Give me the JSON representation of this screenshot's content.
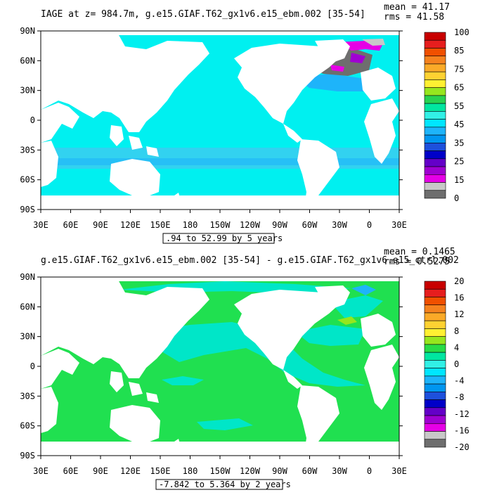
{
  "panels": [
    {
      "title": "IAGE at z= 984.7m, g.e15.GIAF.T62_gx1v6.e15_ebm.002 [35-54]",
      "stats": [
        "mean = 41.17",
        "rms = 41.58"
      ],
      "range_label": ".94 to 52.99 by 5 years",
      "y_ticks": [
        "90N",
        "60N",
        "30N",
        "0",
        "30S",
        "60S",
        "90S"
      ],
      "x_ticks": [
        "30E",
        "60E",
        "90E",
        "120E",
        "150E",
        "180",
        "150W",
        "120W",
        "90W",
        "60W",
        "30W",
        "0",
        "30E"
      ],
      "colorbar_labels": [
        "100",
        "85",
        "75",
        "65",
        "55",
        "45",
        "35",
        "25",
        "15",
        "0"
      ]
    },
    {
      "title": "g.e15.GIAF.T62_gx1v6.e15_ebm.002 [35-54] - g.e15.GIAF.T62_gx1v6.e15_ctrl.002",
      "stats": [
        "mean = 0.1465",
        "rms = 0.5275"
      ],
      "range_label": "-7.842 to 5.364 by 2 years",
      "y_ticks": [
        "90N",
        "60N",
        "30N",
        "0",
        "30S",
        "60S",
        "90S"
      ],
      "x_ticks": [
        "30E",
        "60E",
        "90E",
        "120E",
        "150E",
        "180",
        "150W",
        "120W",
        "90W",
        "60W",
        "30W",
        "0",
        "30E"
      ],
      "colorbar_labels": [
        "20",
        "16",
        "12",
        "8",
        "4",
        "0",
        "-4",
        "-8",
        "-12",
        "-16",
        "-20"
      ]
    }
  ],
  "colors": {
    "cb1": [
      "#c80000",
      "#e61e1e",
      "#f05000",
      "#f5821e",
      "#faaa28",
      "#ffd232",
      "#fff032",
      "#96e61e",
      "#28d250",
      "#00e6a0",
      "#32f0e6",
      "#00e6ff",
      "#1eb4fa",
      "#0096f0",
      "#1e50dc",
      "#0000c8",
      "#6400c8",
      "#a000d2",
      "#e600e6",
      "#c8c8c8",
      "#6e6e6e"
    ],
    "cb2": [
      "#c80000",
      "#e61e1e",
      "#f05000",
      "#f5821e",
      "#faaa28",
      "#ffd232",
      "#fff032",
      "#96e61e",
      "#28dc46",
      "#00e6a0",
      "#32f0e6",
      "#00e6ff",
      "#1eb4fa",
      "#0096f0",
      "#1e50dc",
      "#0000c8",
      "#6400c8",
      "#a000d2",
      "#e600e6",
      "#c8c8c8",
      "#6e6e6e"
    ],
    "ocean1": "#00f0f0",
    "ocean2": "#20e050",
    "land": "#ffffff"
  },
  "chart_data": [
    {
      "type": "heatmap",
      "title": "IAGE at z= 984.7m, g.e15.GIAF.T62_gx1v6.e15_ebm.002 [35-54]",
      "mean": 41.17,
      "rms": 41.58,
      "xlim": [
        "30E",
        "30E"
      ],
      "ylim": [
        "90S",
        "90N"
      ],
      "contour_range": ".94 to 52.99 by 5 years",
      "colorbar_levels": [
        100,
        85,
        75,
        65,
        55,
        45,
        35,
        25,
        15,
        0
      ]
    },
    {
      "type": "heatmap",
      "title": "g.e15.GIAF.T62_gx1v6.e15_ebm.002 [35-54] - g.e15.GIAF.T62_gx1v6.e15_ctrl.002",
      "mean": 0.1465,
      "rms": 0.5275,
      "xlim": [
        "30E",
        "30E"
      ],
      "ylim": [
        "90S",
        "90N"
      ],
      "contour_range": "-7.842 to 5.364 by 2 years",
      "colorbar_levels": [
        20,
        16,
        12,
        8,
        4,
        0,
        -4,
        -8,
        -12,
        -16,
        -20
      ]
    }
  ]
}
